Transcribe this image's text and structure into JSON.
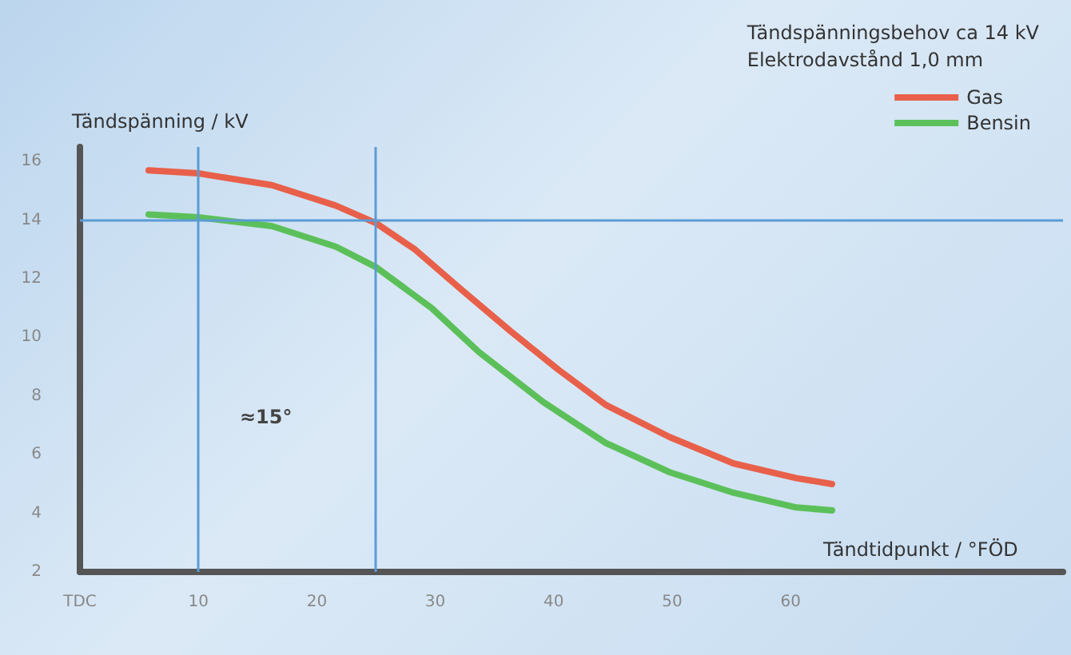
{
  "chart_data": {
    "type": "line",
    "xlabel": "Tändtidpunkt / °FÖD",
    "ylabel": "Tändspänning / kV",
    "legend_title": "Tändspänningsbehov ca 14 kV\nElektrodavstånd 1,0 mm",
    "legend": "top right",
    "grid": false,
    "marker": "none",
    "line_style": "solid",
    "xlim": [
      0,
      83
    ],
    "xticks": [
      {
        "value": 0,
        "label": "TDC"
      },
      10,
      20,
      30,
      40,
      50,
      60
    ],
    "ylim": [
      2,
      16.5
    ],
    "yticks": [
      2,
      4,
      6,
      8,
      10,
      12,
      14,
      16
    ],
    "series": [
      {
        "name": "Gas",
        "color": "#e8604a",
        "x": [
          5.8,
          10,
          16.2,
          21.6,
          25,
          28.3,
          32.3,
          36.4,
          40.4,
          44.4,
          49.8,
          55.2,
          60.5,
          63.5
        ],
        "values": [
          15.7,
          15.6,
          15.2,
          14.5,
          13.9,
          13.0,
          11.6,
          10.2,
          8.9,
          7.7,
          6.6,
          5.7,
          5.2,
          5.0
        ]
      },
      {
        "name": "Bensin",
        "color": "#5cc05a",
        "x": [
          5.8,
          10,
          16.2,
          21.6,
          25,
          29.7,
          33.7,
          39.1,
          44.4,
          49.8,
          55.2,
          60.5,
          63.5
        ],
        "values": [
          14.2,
          14.1,
          13.8,
          13.1,
          12.4,
          11.0,
          9.5,
          7.8,
          6.4,
          5.4,
          4.7,
          4.2,
          4.1
        ]
      }
    ],
    "ref_lines": [
      {
        "axis": "x",
        "value": 10,
        "color": "#5b9bd5"
      },
      {
        "axis": "x",
        "value": 25,
        "color": "#5b9bd5"
      },
      {
        "axis": "y",
        "value": 14,
        "color": "#5b9bd5"
      }
    ],
    "annotations": [
      "≈15°"
    ]
  }
}
